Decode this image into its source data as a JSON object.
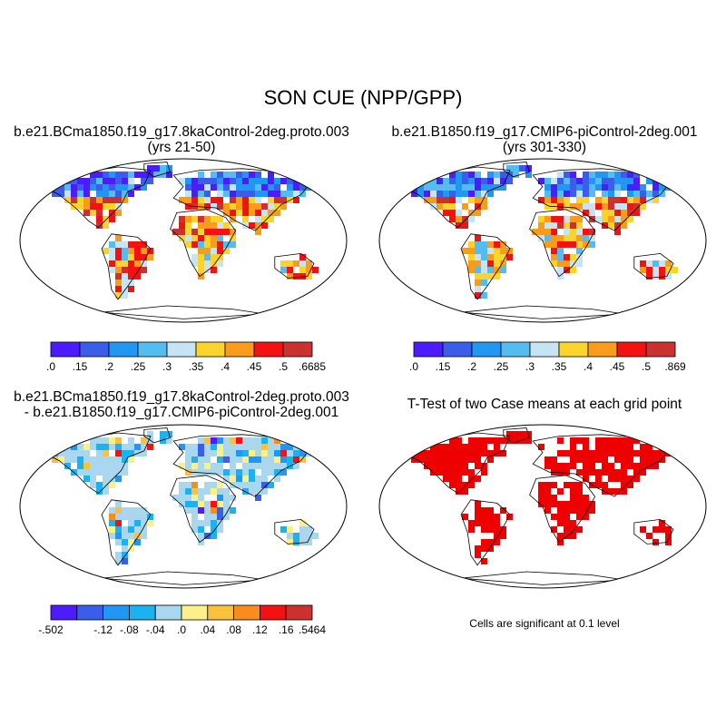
{
  "figure": {
    "title": "SON CUE (NPP/GPP)"
  },
  "panels": [
    {
      "id": "case1",
      "title_line1": "b.e21.BCma1850.f19_g17.8kaControl-2deg.proto.003",
      "title_line2": "(yrs 21-50)",
      "colorbar": {
        "colors": [
          "#4d1cfd",
          "#3a5ee9",
          "#2196f3",
          "#55bcf0",
          "#c6e4f4",
          "#fad42c",
          "#f99c1a",
          "#f41112",
          "#cc3130"
        ],
        "labels": [
          ".0",
          ".15",
          ".2",
          ".25",
          ".3",
          ".35",
          ".4",
          ".45",
          ".5",
          ".6685"
        ]
      }
    },
    {
      "id": "case2",
      "title_line1": "b.e21.B1850.f19_g17.CMIP6-piControl-2deg.001",
      "title_line2": "(yrs 301-330)",
      "colorbar": {
        "colors": [
          "#4d1cfd",
          "#3a5ee9",
          "#2196f3",
          "#55bcf0",
          "#c6e4f4",
          "#fad42c",
          "#f99c1a",
          "#f41112",
          "#cc3130"
        ],
        "labels": [
          ".0",
          ".15",
          ".2",
          ".25",
          ".3",
          ".35",
          ".4",
          ".45",
          ".5",
          ".869"
        ]
      }
    },
    {
      "id": "difference",
      "title_line1": "b.e21.BCma1850.f19_g17.8kaControl-2deg.proto.003",
      "title_line2": "- b.e21.B1850.f19_g17.CMIP6-piControl-2deg.001",
      "colorbar": {
        "colors": [
          "#4d1cfd",
          "#3a5ee9",
          "#2196f3",
          "#1bb2ef",
          "#a8d7ee",
          "#fbf08a",
          "#fac13c",
          "#f98c1e",
          "#f41112",
          "#cc3130"
        ],
        "labels": [
          "-.502",
          "",
          "-.12",
          "-.08",
          "-.04",
          ".0",
          ".04",
          ".08",
          ".12",
          ".16",
          ".5464"
        ]
      }
    },
    {
      "id": "ttest",
      "title_line1": "T-Test of two Case means at each grid point",
      "note": "Cells are significant at 0.1 level",
      "color": "#ee0000"
    }
  ]
}
